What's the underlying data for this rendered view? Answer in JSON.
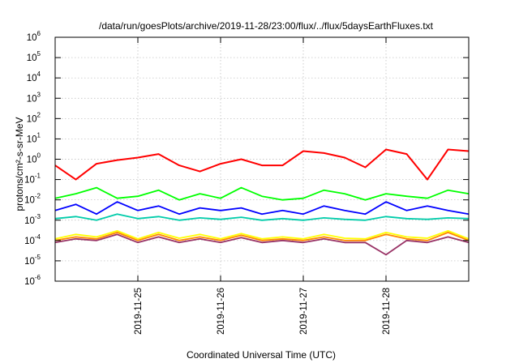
{
  "chart_data": {
    "type": "line",
    "title": "/data/run/goesPlots/archive/2019-11-28/23:00/flux/../flux/5daysEarthFluxes.txt",
    "xlabel": "Coordinated Universal Time (UTC)",
    "ylabel": "protons/cm²-s-sr-MeV",
    "y_scale": "log",
    "ylim": [
      1e-06,
      1000000.0
    ],
    "xlim": [
      "2019-11-24T00:00",
      "2019-11-29T00:00"
    ],
    "grid": true,
    "legend": "none",
    "y_ticks": [
      {
        "exp": "-6",
        "value": 1e-06
      },
      {
        "exp": "-5",
        "value": 1e-05
      },
      {
        "exp": "-4",
        "value": 0.0001
      },
      {
        "exp": "-3",
        "value": 0.001
      },
      {
        "exp": "-2",
        "value": 0.01
      },
      {
        "exp": "-1",
        "value": 0.1
      },
      {
        "exp": "0",
        "value": 1
      },
      {
        "exp": "1",
        "value": 10
      },
      {
        "exp": "2",
        "value": 100
      },
      {
        "exp": "3",
        "value": 1000
      },
      {
        "exp": "4",
        "value": 10000
      },
      {
        "exp": "5",
        "value": 100000
      },
      {
        "exp": "6",
        "value": 1000000
      }
    ],
    "y_tick_base": "10",
    "x_ticks": [
      {
        "label": "2019-11-25",
        "value": "2019-11-25T00:00"
      },
      {
        "label": "2019-11-26",
        "value": "2019-11-26T00:00"
      },
      {
        "label": "2019-11-27",
        "value": "2019-11-27T00:00"
      },
      {
        "label": "2019-11-28",
        "value": "2019-11-28T00:00"
      }
    ],
    "series": [
      {
        "color": "#ff0000",
        "x": [
          "2019-11-24T00:00",
          "2019-11-24T06:00",
          "2019-11-24T12:00",
          "2019-11-24T18:00",
          "2019-11-25T00:00",
          "2019-11-25T06:00",
          "2019-11-25T12:00",
          "2019-11-25T18:00",
          "2019-11-26T00:00",
          "2019-11-26T06:00",
          "2019-11-26T12:00",
          "2019-11-26T18:00",
          "2019-11-27T00:00",
          "2019-11-27T06:00",
          "2019-11-27T12:00",
          "2019-11-27T18:00",
          "2019-11-28T00:00",
          "2019-11-28T06:00",
          "2019-11-28T12:00",
          "2019-11-28T18:00",
          "2019-11-29T00:00"
        ],
        "values": [
          0.5,
          0.1,
          0.6,
          0.9,
          1.2,
          1.8,
          0.5,
          0.25,
          0.6,
          1.0,
          0.5,
          0.5,
          2.5,
          2.0,
          1.2,
          0.4,
          3.0,
          1.8,
          0.1,
          3.0,
          2.5
        ]
      },
      {
        "color": "#00ff00",
        "x": [
          "2019-11-24T00:00",
          "2019-11-24T06:00",
          "2019-11-24T12:00",
          "2019-11-24T18:00",
          "2019-11-25T00:00",
          "2019-11-25T06:00",
          "2019-11-25T12:00",
          "2019-11-25T18:00",
          "2019-11-26T00:00",
          "2019-11-26T06:00",
          "2019-11-26T12:00",
          "2019-11-26T18:00",
          "2019-11-27T00:00",
          "2019-11-27T06:00",
          "2019-11-27T12:00",
          "2019-11-27T18:00",
          "2019-11-28T00:00",
          "2019-11-28T06:00",
          "2019-11-28T12:00",
          "2019-11-28T18:00",
          "2019-11-29T00:00"
        ],
        "values": [
          0.012,
          0.02,
          0.04,
          0.012,
          0.015,
          0.03,
          0.01,
          0.02,
          0.012,
          0.04,
          0.015,
          0.01,
          0.012,
          0.03,
          0.02,
          0.01,
          0.02,
          0.015,
          0.012,
          0.03,
          0.02
        ]
      },
      {
        "color": "#0000ff",
        "x": [
          "2019-11-24T00:00",
          "2019-11-24T06:00",
          "2019-11-24T12:00",
          "2019-11-24T18:00",
          "2019-11-25T00:00",
          "2019-11-25T06:00",
          "2019-11-25T12:00",
          "2019-11-25T18:00",
          "2019-11-26T00:00",
          "2019-11-26T06:00",
          "2019-11-26T12:00",
          "2019-11-26T18:00",
          "2019-11-27T00:00",
          "2019-11-27T06:00",
          "2019-11-27T12:00",
          "2019-11-27T18:00",
          "2019-11-28T00:00",
          "2019-11-28T06:00",
          "2019-11-28T12:00",
          "2019-11-28T18:00",
          "2019-11-29T00:00"
        ],
        "values": [
          0.003,
          0.006,
          0.002,
          0.008,
          0.003,
          0.005,
          0.002,
          0.004,
          0.003,
          0.004,
          0.002,
          0.003,
          0.002,
          0.005,
          0.003,
          0.002,
          0.008,
          0.003,
          0.005,
          0.003,
          0.002
        ]
      },
      {
        "color": "#00ccaa",
        "x": [
          "2019-11-24T00:00",
          "2019-11-24T06:00",
          "2019-11-24T12:00",
          "2019-11-24T18:00",
          "2019-11-25T00:00",
          "2019-11-25T06:00",
          "2019-11-25T12:00",
          "2019-11-25T18:00",
          "2019-11-26T00:00",
          "2019-11-26T06:00",
          "2019-11-26T12:00",
          "2019-11-26T18:00",
          "2019-11-27T00:00",
          "2019-11-27T06:00",
          "2019-11-27T12:00",
          "2019-11-27T18:00",
          "2019-11-28T00:00",
          "2019-11-28T06:00",
          "2019-11-28T12:00",
          "2019-11-28T18:00",
          "2019-11-29T00:00"
        ],
        "values": [
          0.0012,
          0.0015,
          0.001,
          0.002,
          0.0012,
          0.0015,
          0.001,
          0.0013,
          0.0011,
          0.0014,
          0.001,
          0.0012,
          0.001,
          0.0013,
          0.0011,
          0.001,
          0.0015,
          0.0012,
          0.0011,
          0.0013,
          0.0012
        ]
      },
      {
        "color": "#ffff00",
        "x": [
          "2019-11-24T00:00",
          "2019-11-24T06:00",
          "2019-11-24T12:00",
          "2019-11-24T18:00",
          "2019-11-25T00:00",
          "2019-11-25T06:00",
          "2019-11-25T12:00",
          "2019-11-25T18:00",
          "2019-11-26T00:00",
          "2019-11-26T06:00",
          "2019-11-26T12:00",
          "2019-11-26T18:00",
          "2019-11-27T00:00",
          "2019-11-27T06:00",
          "2019-11-27T12:00",
          "2019-11-27T18:00",
          "2019-11-28T00:00",
          "2019-11-28T06:00",
          "2019-11-28T12:00",
          "2019-11-28T18:00",
          "2019-11-29T00:00"
        ],
        "values": [
          0.00012,
          0.0002,
          0.00015,
          0.0003,
          0.00012,
          0.00025,
          0.00013,
          0.0002,
          0.00012,
          0.00022,
          0.00012,
          0.00015,
          0.00012,
          0.0002,
          0.00013,
          0.00012,
          0.00025,
          0.00015,
          0.00013,
          0.0003,
          0.00012
        ]
      },
      {
        "color": "#ff8800",
        "x": [
          "2019-11-24T00:00",
          "2019-11-24T06:00",
          "2019-11-24T12:00",
          "2019-11-24T18:00",
          "2019-11-25T00:00",
          "2019-11-25T06:00",
          "2019-11-25T12:00",
          "2019-11-25T18:00",
          "2019-11-26T00:00",
          "2019-11-26T06:00",
          "2019-11-26T12:00",
          "2019-11-26T18:00",
          "2019-11-27T00:00",
          "2019-11-27T06:00",
          "2019-11-27T12:00",
          "2019-11-27T18:00",
          "2019-11-28T00:00",
          "2019-11-28T06:00",
          "2019-11-28T12:00",
          "2019-11-28T18:00",
          "2019-11-29T00:00"
        ],
        "values": [
          0.0001,
          0.00015,
          0.00012,
          0.00025,
          0.0001,
          0.0002,
          0.0001,
          0.00015,
          0.0001,
          0.00018,
          0.0001,
          0.00012,
          0.0001,
          0.00015,
          0.0001,
          0.0001,
          0.0002,
          0.00012,
          0.0001,
          0.00025,
          0.0001
        ]
      },
      {
        "color": "#993366",
        "x": [
          "2019-11-24T00:00",
          "2019-11-24T06:00",
          "2019-11-24T12:00",
          "2019-11-24T18:00",
          "2019-11-25T00:00",
          "2019-11-25T06:00",
          "2019-11-25T12:00",
          "2019-11-25T18:00",
          "2019-11-26T00:00",
          "2019-11-26T06:00",
          "2019-11-26T12:00",
          "2019-11-26T18:00",
          "2019-11-27T00:00",
          "2019-11-27T06:00",
          "2019-11-27T12:00",
          "2019-11-27T18:00",
          "2019-11-28T00:00",
          "2019-11-28T06:00",
          "2019-11-28T12:00",
          "2019-11-28T18:00",
          "2019-11-29T00:00"
        ],
        "values": [
          8e-05,
          0.00012,
          0.0001,
          0.0002,
          8e-05,
          0.00015,
          8e-05,
          0.00012,
          8e-05,
          0.00014,
          8e-05,
          0.0001,
          8e-05,
          0.00012,
          8e-05,
          8e-05,
          2e-05,
          0.0001,
          8e-05,
          0.00015,
          8e-05
        ]
      }
    ]
  }
}
